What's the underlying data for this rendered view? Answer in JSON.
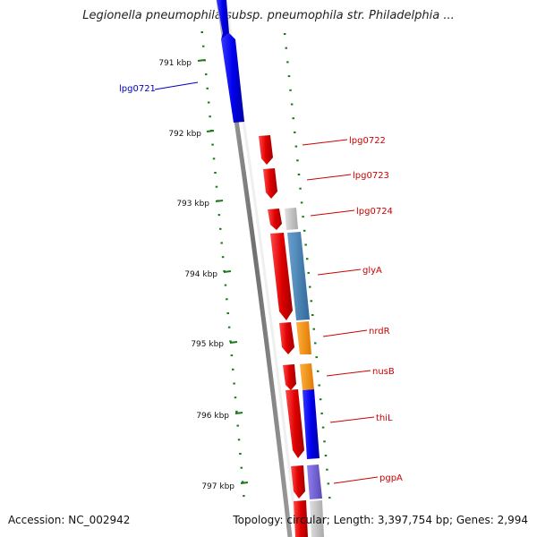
{
  "title": "Legionella pneumophila subsp. pneumophila str. Philadelphia ...",
  "footer": {
    "accession": "Accession: NC_002942",
    "topology": "Topology: circular; Length: 3,397,754 bp; Genes: 2,994"
  },
  "colors": {
    "backbone": "#808080",
    "tick": "#1a7a1a",
    "forward_gene": "#e00000",
    "reverse_gene": "#0000ee",
    "gene_label_red": "#cc0000",
    "gene_label_blue": "#0000bb",
    "cog_gray": "#c0c0c0",
    "cog_steelblue": "#4682b4",
    "cog_orange": "#ff8c00",
    "cog_blue": "#0000ff",
    "cog_purple": "#7060d0"
  },
  "ruler": [
    {
      "label": "791 kbp"
    },
    {
      "label": "792 kbp"
    },
    {
      "label": "793 kbp"
    },
    {
      "label": "794 kbp"
    },
    {
      "label": "795 kbp"
    },
    {
      "label": "796 kbp"
    },
    {
      "label": "797 kbp"
    }
  ],
  "gene_labels": [
    {
      "name": "lpg0721",
      "color": "blue"
    },
    {
      "name": "lpg0722",
      "color": "red"
    },
    {
      "name": "lpg0723",
      "color": "red"
    },
    {
      "name": "lpg0724",
      "color": "red"
    },
    {
      "name": "glyA",
      "color": "red"
    },
    {
      "name": "nrdR",
      "color": "red"
    },
    {
      "name": "nusB",
      "color": "red"
    },
    {
      "name": "thiL",
      "color": "red"
    },
    {
      "name": "pgpA",
      "color": "red"
    }
  ]
}
